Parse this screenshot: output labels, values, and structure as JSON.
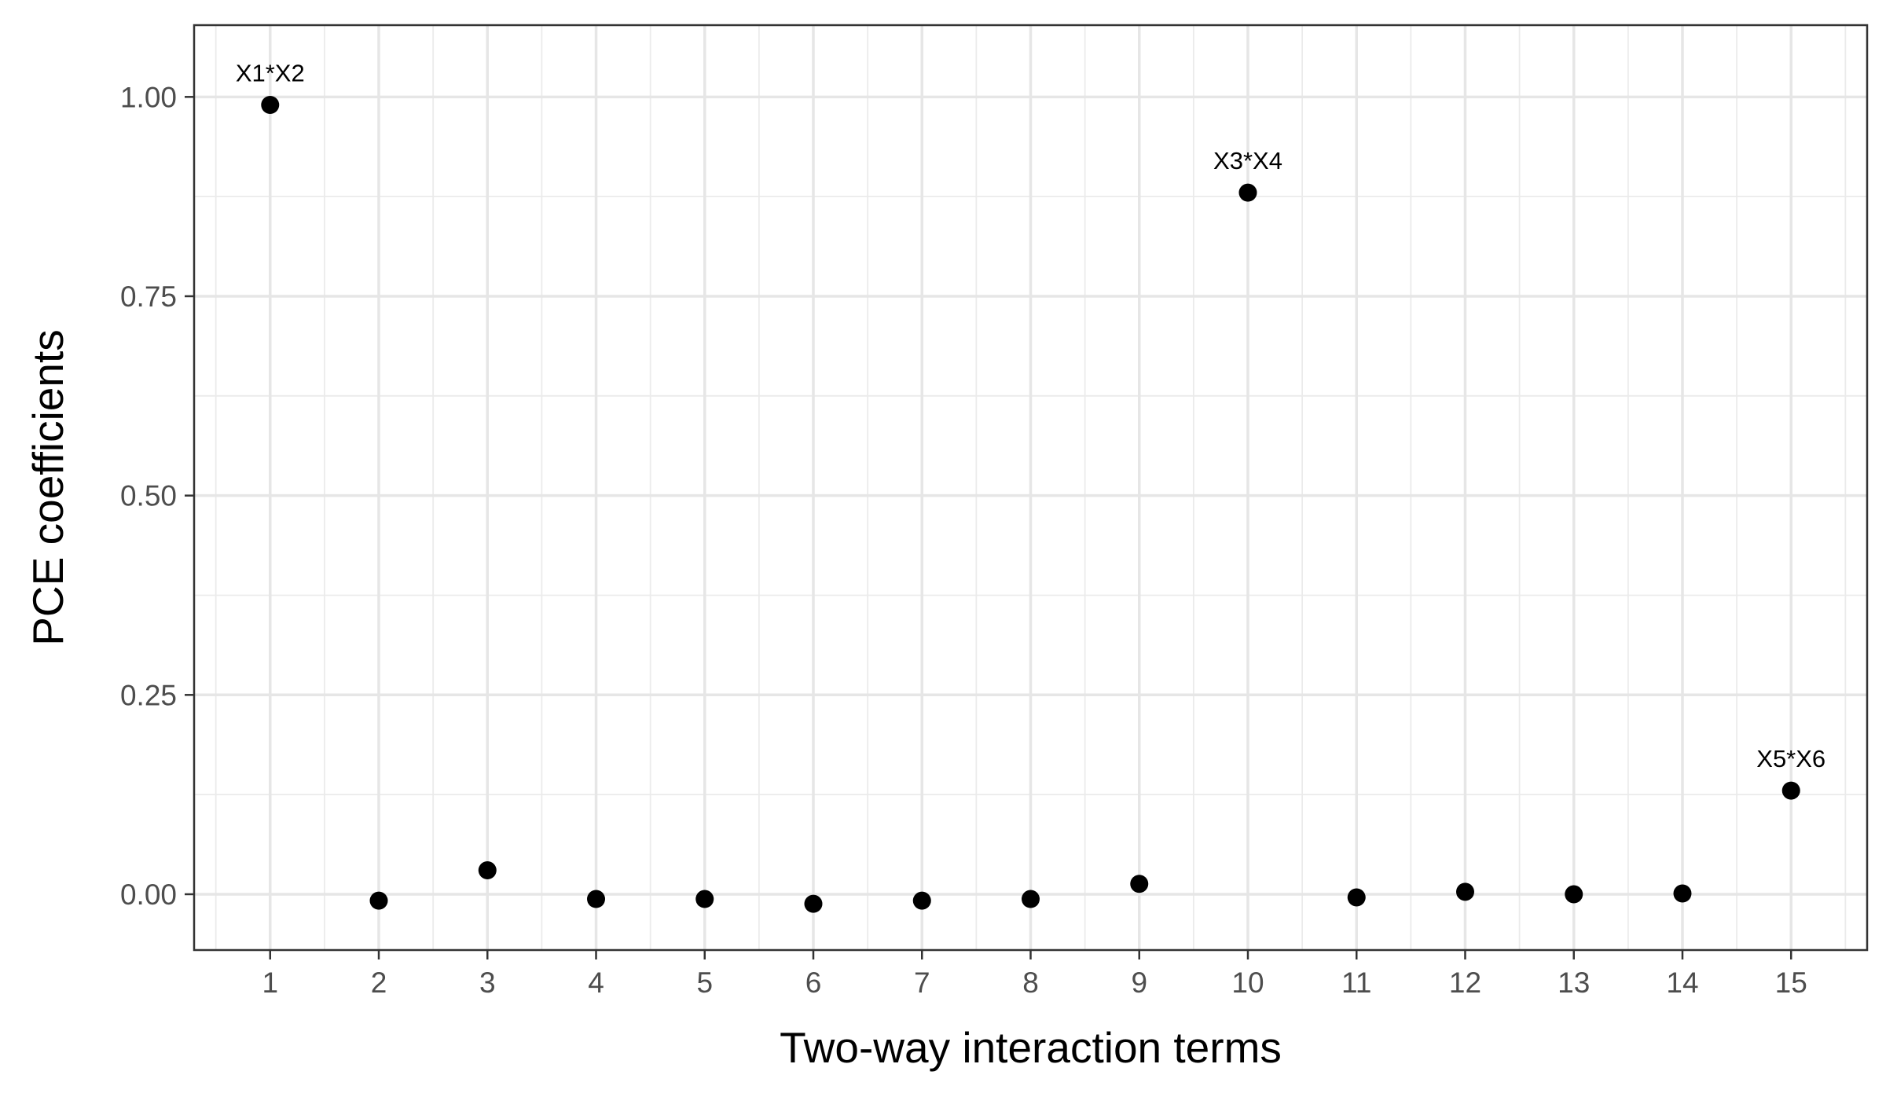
{
  "chart_data": {
    "type": "scatter",
    "title": "",
    "xlabel": "Two-way interaction terms",
    "ylabel": "PCE coefficients",
    "xlim": [
      0.3,
      15.7
    ],
    "ylim": [
      -0.07,
      1.09
    ],
    "x_ticks": [
      1,
      2,
      3,
      4,
      5,
      6,
      7,
      8,
      9,
      10,
      11,
      12,
      13,
      14,
      15
    ],
    "x_tick_labels": [
      "1",
      "2",
      "3",
      "4",
      "5",
      "6",
      "7",
      "8",
      "9",
      "10",
      "11",
      "12",
      "13",
      "14",
      "15"
    ],
    "y_ticks": [
      0.0,
      0.25,
      0.5,
      0.75,
      1.0
    ],
    "y_tick_labels": [
      "0.00",
      "0.25",
      "0.50",
      "0.75",
      "1.00"
    ],
    "grid": true,
    "legend": "none",
    "point_color": "#000000",
    "series": [
      {
        "x": [
          1,
          2,
          3,
          4,
          5,
          6,
          7,
          8,
          9,
          10,
          11,
          12,
          13,
          14,
          15
        ],
        "y": [
          0.99,
          -0.008,
          0.03,
          -0.006,
          -0.006,
          -0.012,
          -0.008,
          -0.006,
          0.013,
          0.88,
          -0.004,
          0.003,
          0.0,
          0.001,
          0.13
        ]
      }
    ],
    "annotations": [
      {
        "x": 1,
        "y": 0.99,
        "text": "X1*X2"
      },
      {
        "x": 10,
        "y": 0.88,
        "text": "X3*X4"
      },
      {
        "x": 15,
        "y": 0.13,
        "text": "X5*X6"
      }
    ]
  }
}
